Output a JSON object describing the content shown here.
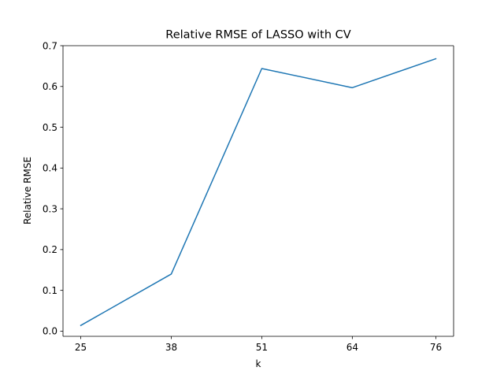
{
  "chart_data": {
    "type": "line",
    "title": "Relative RMSE of LASSO with CV",
    "xlabel": "k",
    "ylabel": "Relative RMSE",
    "x": [
      25,
      38,
      51,
      64,
      76
    ],
    "series": [
      {
        "values": [
          0.014,
          0.14,
          0.644,
          0.597,
          0.668
        ],
        "color": "#1f77b4"
      }
    ],
    "xticks": [
      25,
      38,
      51,
      64,
      76
    ],
    "xtick_labels": [
      "25",
      "38",
      "51",
      "64",
      "76"
    ],
    "yticks": [
      0.0,
      0.1,
      0.2,
      0.3,
      0.4,
      0.5,
      0.6,
      0.7
    ],
    "ytick_labels": [
      "0.0",
      "0.1",
      "0.2",
      "0.3",
      "0.4",
      "0.5",
      "0.6",
      "0.7"
    ],
    "ylim": [
      -0.0127,
      0.7
    ],
    "grid": false,
    "legend": false
  }
}
